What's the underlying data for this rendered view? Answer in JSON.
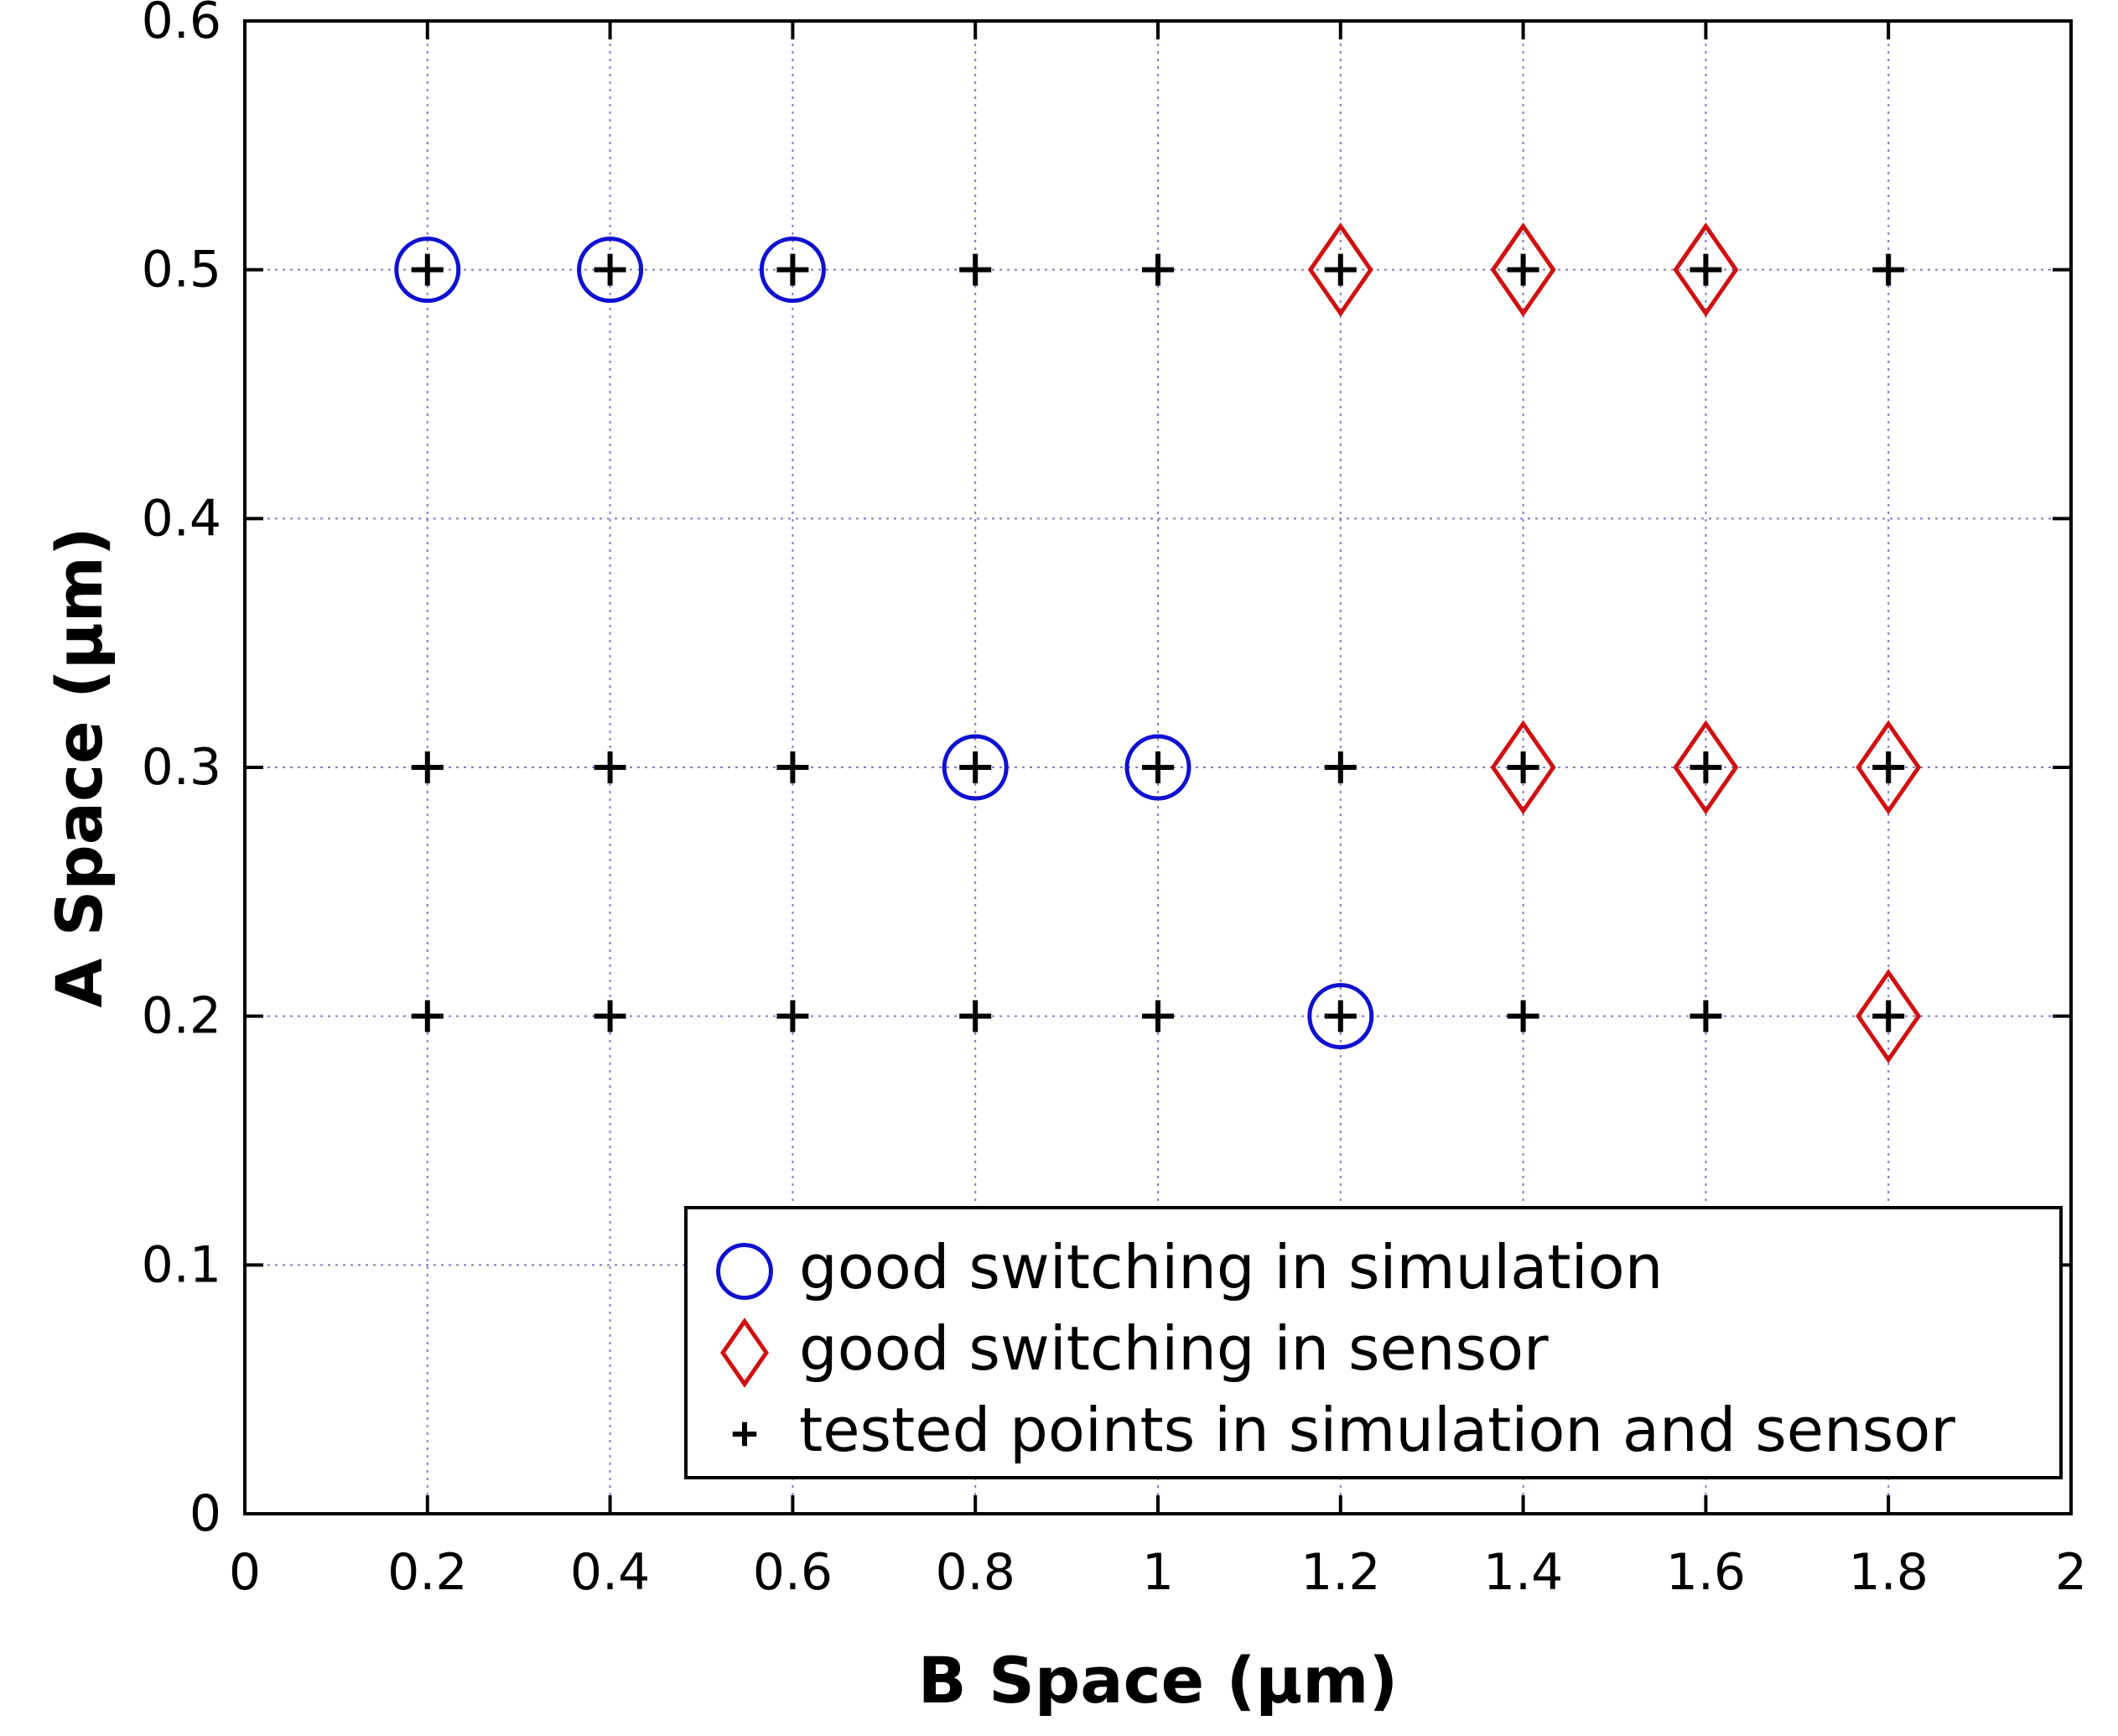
{
  "chart_data": {
    "type": "scatter",
    "title": "",
    "xlabel": "B Space (µm)",
    "ylabel": "A Space (µm)",
    "xlim": [
      0,
      2
    ],
    "ylim": [
      0,
      0.6
    ],
    "xticks": [
      0,
      0.2,
      0.4,
      0.6,
      0.8,
      1,
      1.2,
      1.4,
      1.6,
      1.8,
      2
    ],
    "yticks": [
      0,
      0.1,
      0.2,
      0.3,
      0.4,
      0.5,
      0.6
    ],
    "xtick_labels": [
      "0",
      "0.2",
      "0.4",
      "0.6",
      "0.8",
      "1",
      "1.2",
      "1.4",
      "1.6",
      "1.8",
      "2"
    ],
    "ytick_labels": [
      "0",
      "0.1",
      "0.2",
      "0.3",
      "0.4",
      "0.5",
      "0.6"
    ],
    "grid": true,
    "legend_position": "bottom-right",
    "series": [
      {
        "name": "good switching in simulation",
        "marker": "circle",
        "color": "#1010d0",
        "points": [
          [
            0.2,
            0.5
          ],
          [
            0.4,
            0.5
          ],
          [
            0.6,
            0.5
          ],
          [
            0.8,
            0.3
          ],
          [
            1,
            0.3
          ],
          [
            1.2,
            0.2
          ]
        ]
      },
      {
        "name": "good switching in sensor",
        "marker": "diamond",
        "color": "#d01010",
        "points": [
          [
            1.2,
            0.5
          ],
          [
            1.4,
            0.5
          ],
          [
            1.6,
            0.5
          ],
          [
            1.4,
            0.3
          ],
          [
            1.6,
            0.3
          ],
          [
            1.8,
            0.3
          ],
          [
            1.8,
            0.2
          ]
        ]
      },
      {
        "name": "tested points in simulation and sensor",
        "marker": "plus",
        "color": "#000000",
        "points": [
          [
            0.2,
            0.5
          ],
          [
            0.4,
            0.5
          ],
          [
            0.6,
            0.5
          ],
          [
            0.8,
            0.5
          ],
          [
            1,
            0.5
          ],
          [
            1.2,
            0.5
          ],
          [
            1.4,
            0.5
          ],
          [
            1.6,
            0.5
          ],
          [
            1.8,
            0.5
          ],
          [
            0.2,
            0.3
          ],
          [
            0.4,
            0.3
          ],
          [
            0.6,
            0.3
          ],
          [
            0.8,
            0.3
          ],
          [
            1,
            0.3
          ],
          [
            1.2,
            0.3
          ],
          [
            1.4,
            0.3
          ],
          [
            1.6,
            0.3
          ],
          [
            1.8,
            0.3
          ],
          [
            0.2,
            0.2
          ],
          [
            0.4,
            0.2
          ],
          [
            0.6,
            0.2
          ],
          [
            0.8,
            0.2
          ],
          [
            1,
            0.2
          ],
          [
            1.2,
            0.2
          ],
          [
            1.4,
            0.2
          ],
          [
            1.6,
            0.2
          ],
          [
            1.8,
            0.2
          ]
        ]
      }
    ]
  }
}
